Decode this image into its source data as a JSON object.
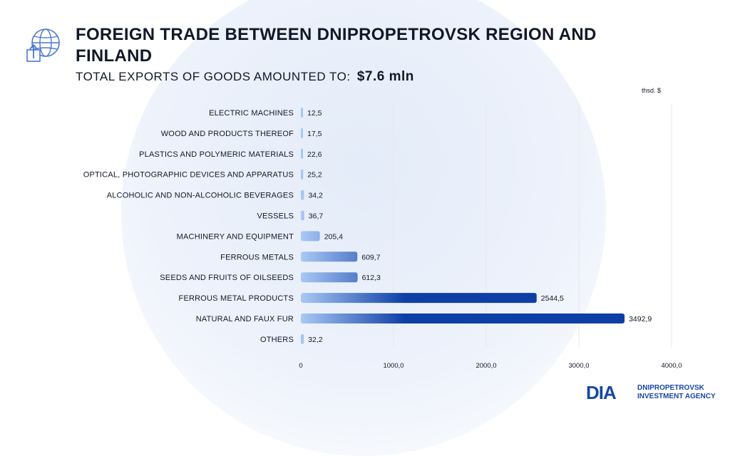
{
  "header": {
    "title": "FOREIGN TRADE BETWEEN DNIPROPETROVSK REGION AND FINLAND",
    "subtitle_label": "TOTAL EXPORTS OF GOODS AMOUNTED TO:",
    "subtitle_value": "$7.6 mln",
    "unit": "thsd. $"
  },
  "brand": {
    "mark": "DIA",
    "line1": "DNIPROPETROVSK",
    "line2": "INVESTMENT AGENCY"
  },
  "colors": {
    "bar_dark": "#0d3fa6",
    "bar_light": "#a9c8f5",
    "grid": "#e5e7eb",
    "text": "#111827"
  },
  "chart_data": {
    "type": "bar",
    "orientation": "horizontal",
    "categories": [
      "ELECTRIC MACHINES",
      "WOOD AND PRODUCTS THEREOF",
      "PLASTICS AND POLYMERIC MATERIALS",
      "OPTICAL, PHOTOGRAPHIC DEVICES AND APPARATUS",
      "ALCOHOLIC AND NON-ALCOHOLIC BEVERAGES",
      "VESSELS",
      "MACHINERY AND EQUIPMENT",
      "FERROUS METALS",
      "SEEDS AND FRUITS OF OILSEEDS",
      "FERROUS METAL PRODUCTS",
      "NATURAL AND FAUX FUR",
      "OTHERS"
    ],
    "values": [
      12.5,
      17.5,
      22.6,
      25.2,
      34.2,
      36.7,
      205.4,
      609.7,
      612.3,
      2544.5,
      3492.9,
      32.2
    ],
    "value_labels": [
      "12,5",
      "17,5",
      "22,6",
      "25,2",
      "34,2",
      "36,7",
      "205,4",
      "609,7",
      "612,3",
      "2544,5",
      "3492,9",
      "32,2"
    ],
    "xlim": [
      0,
      4000
    ],
    "xticks": [
      0,
      1000,
      2000,
      3000,
      4000
    ],
    "xtick_labels": [
      "0",
      "1000,0",
      "2000,0",
      "3000,0",
      "4000,0"
    ],
    "grid": true
  }
}
